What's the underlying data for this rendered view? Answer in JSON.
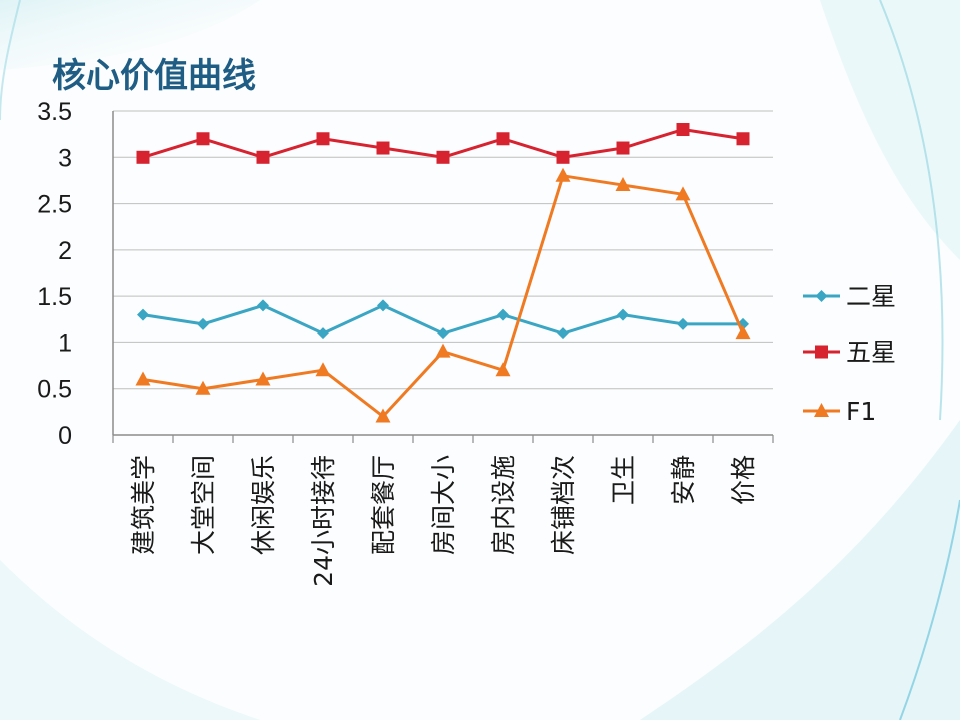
{
  "title": "核心价值曲线",
  "colors": {
    "title": "#1f5d84",
    "grid": "#bfbfbf",
    "axis": "#8c8c8c",
    "text": "#1a1a1a"
  },
  "chart_data": {
    "type": "line",
    "title": "核心价值曲线",
    "xlabel": "",
    "ylabel": "",
    "ylim": [
      0,
      3.5
    ],
    "yticks": [
      "0",
      "0.5",
      "1",
      "1.5",
      "2",
      "2.5",
      "3",
      "3.5"
    ],
    "grid": true,
    "legend_position": "right",
    "categories": [
      "建筑美学",
      "大堂空间",
      "休闲娱乐",
      "24小时接待",
      "配套餐厅",
      "房间大小",
      "房内设施",
      "床铺档次",
      "卫生",
      "安静",
      "价格"
    ],
    "series": [
      {
        "name": "二星",
        "color": "#3aa6c4",
        "marker": "diamond",
        "values": [
          1.3,
          1.2,
          1.4,
          1.1,
          1.4,
          1.1,
          1.3,
          1.1,
          1.3,
          1.2,
          1.2
        ]
      },
      {
        "name": "五星",
        "color": "#d7222f",
        "marker": "square",
        "values": [
          3.0,
          3.2,
          3.0,
          3.2,
          3.1,
          3.0,
          3.2,
          3.0,
          3.1,
          3.3,
          3.2
        ]
      },
      {
        "name": "F1",
        "color": "#f07a22",
        "marker": "triangle",
        "values": [
          0.6,
          0.5,
          0.6,
          0.7,
          0.2,
          0.9,
          0.7,
          2.8,
          2.7,
          2.6,
          1.1
        ]
      }
    ]
  }
}
